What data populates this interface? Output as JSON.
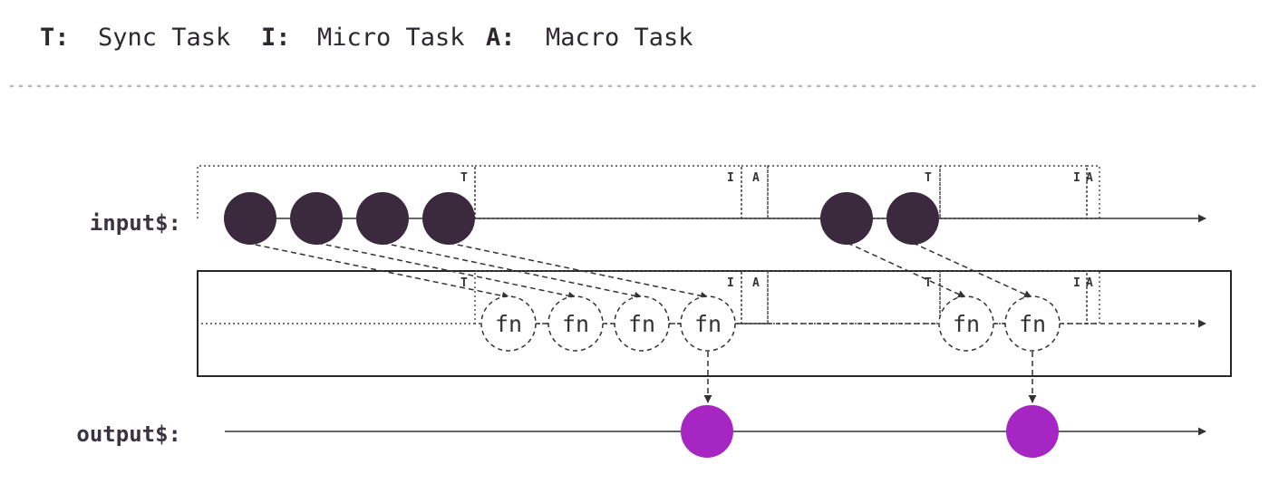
{
  "legend": [
    {
      "key": "T:",
      "text": "Sync Task"
    },
    {
      "key": "I:",
      "text": "Micro Task"
    },
    {
      "key": "A:",
      "text": "Macro Task"
    }
  ],
  "streams": {
    "input_label": "input$:",
    "output_label": "output$:"
  },
  "phase_labels": {
    "sync": "T",
    "micro": "I",
    "macro": "A"
  },
  "operator": {
    "fn_label": "fn"
  },
  "colors": {
    "input_marble": "#3b2a3d",
    "output_marble": "#a626c4",
    "line": "#333333",
    "text": "#2d2830"
  },
  "counts": {
    "input_marbles": 6,
    "fn_calls": 6,
    "output_marbles": 2
  }
}
